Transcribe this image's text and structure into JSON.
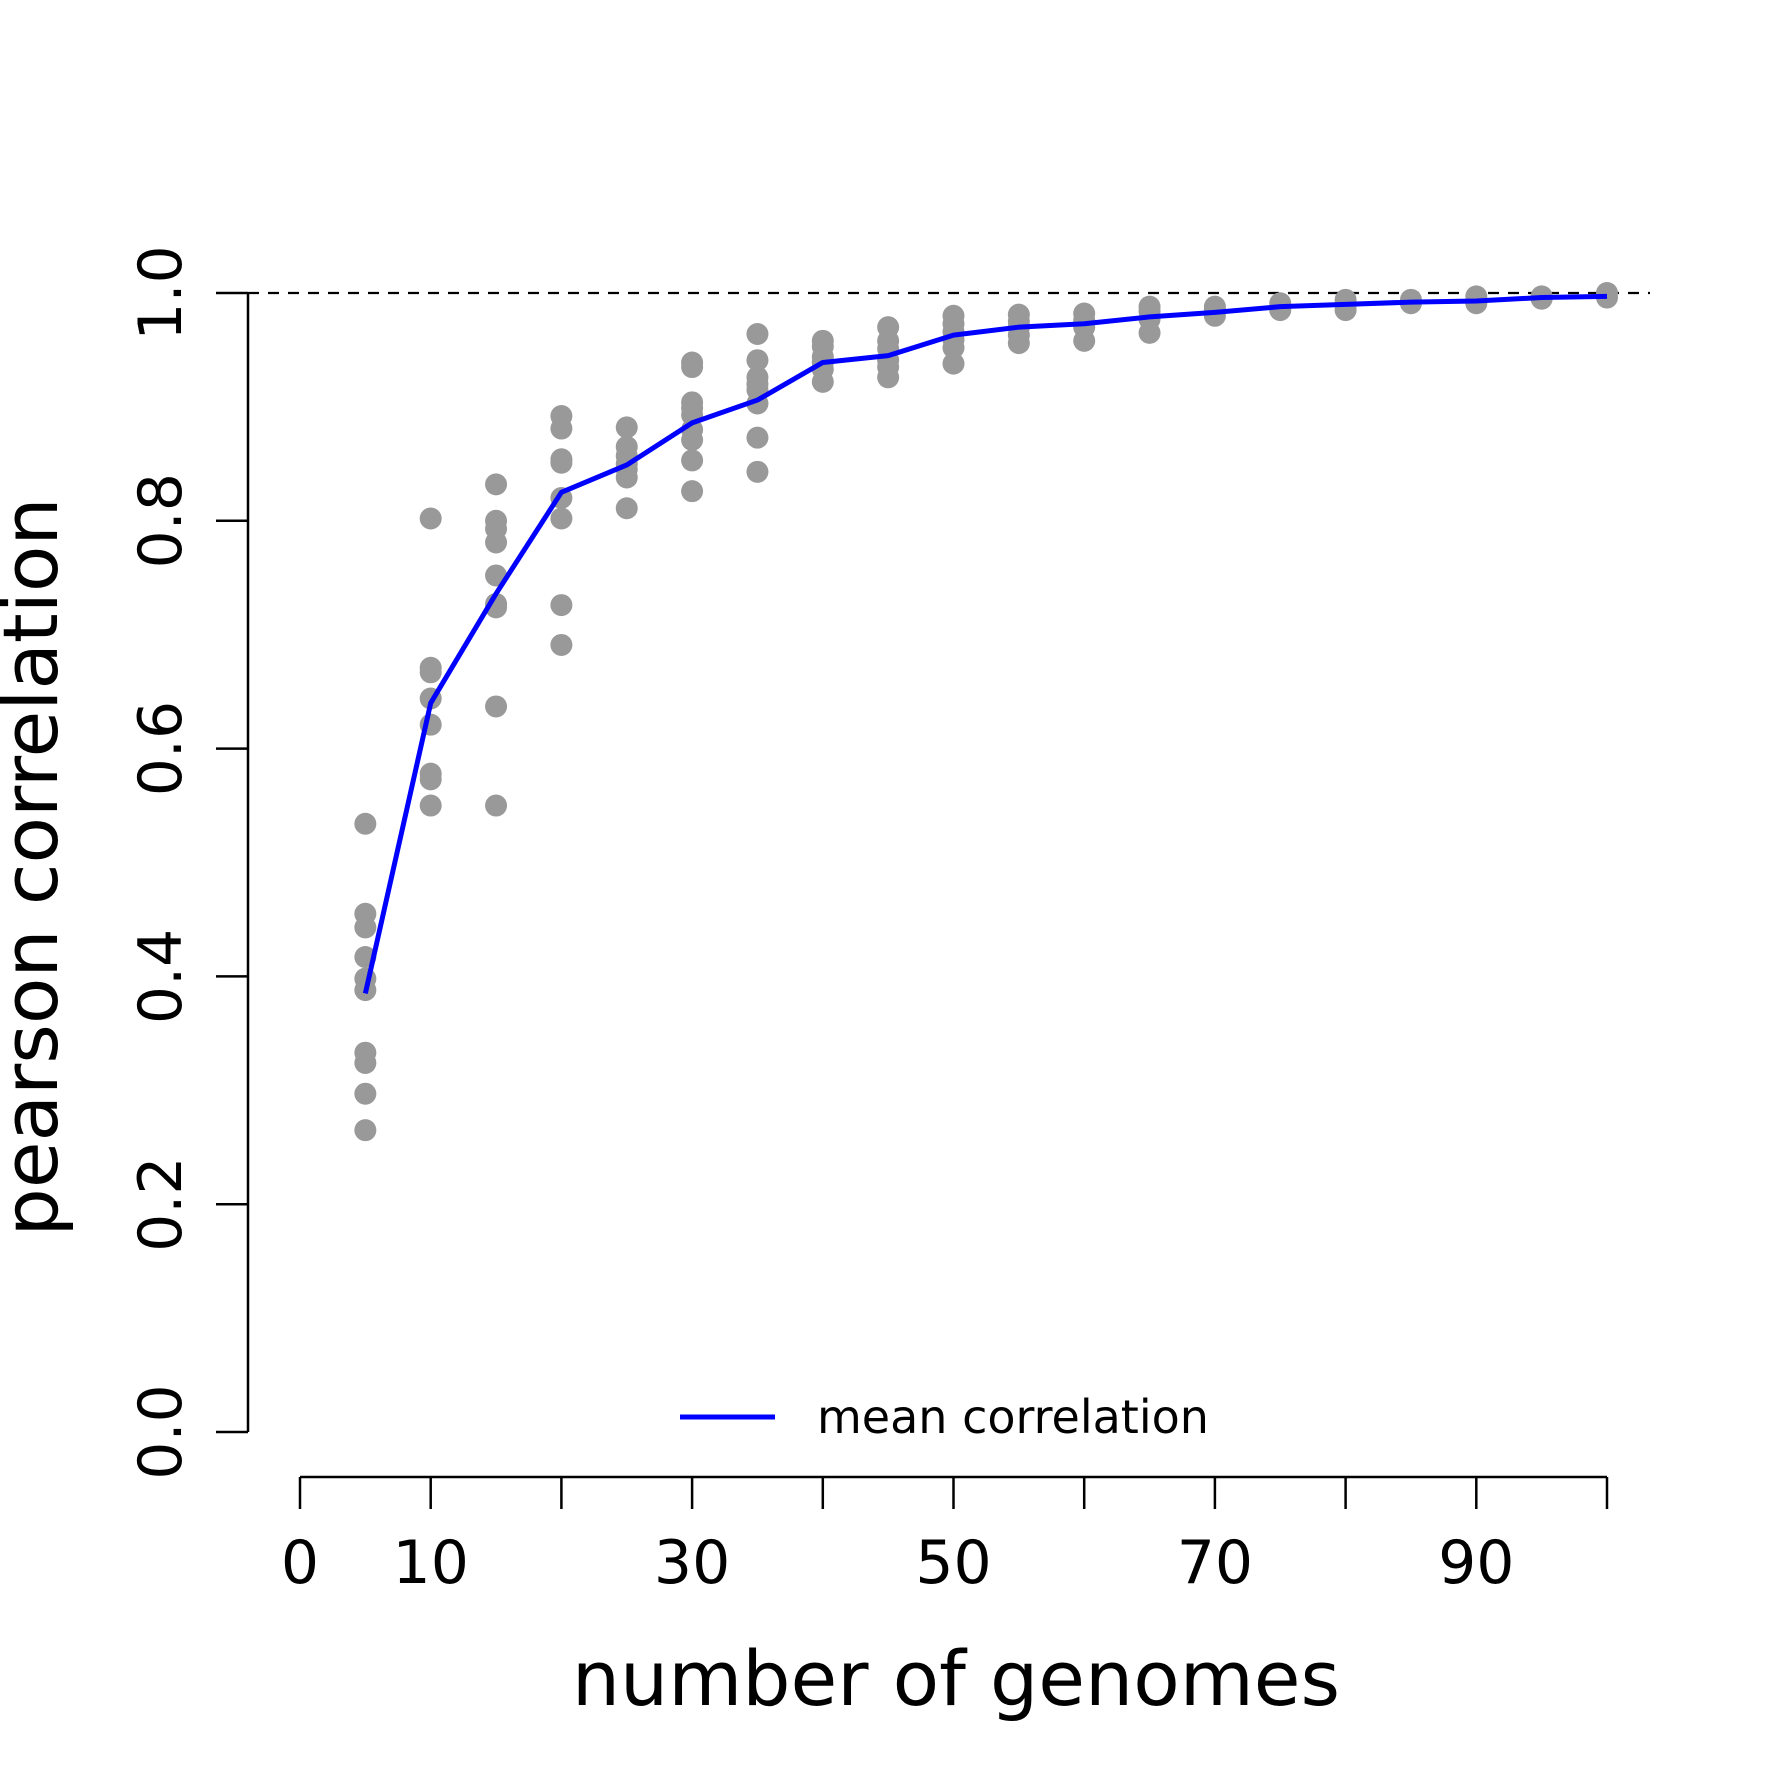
{
  "chart_data": {
    "type": "scatter",
    "xlabel": "number of genomes",
    "ylabel": "pearson correlation",
    "xlim": [
      0,
      100
    ],
    "ylim": [
      0,
      1
    ],
    "x_ticks": [
      0,
      10,
      20,
      30,
      40,
      50,
      60,
      70,
      80,
      90,
      100
    ],
    "x_tick_labels": [
      "0",
      "10",
      "30",
      "50",
      "70",
      "90"
    ],
    "x_labeled_values": [
      0,
      10,
      30,
      50,
      70,
      90
    ],
    "y_ticks": [
      0,
      0.2,
      0.4,
      0.6,
      0.8,
      1.0
    ],
    "y_tick_labels": [
      "0.0",
      "0.2",
      "0.4",
      "0.6",
      "0.8",
      "1.0"
    ],
    "reference_line": {
      "y": 1.0,
      "style": "dashed"
    },
    "legend": {
      "position": "bottom-center",
      "entries": [
        "mean correlation"
      ]
    },
    "colors": {
      "points": "#999999",
      "mean_line": "#0000ff",
      "axis": "#000000"
    },
    "points": [
      {
        "x": 5,
        "y": [
          0.534,
          0.455,
          0.443,
          0.417,
          0.398,
          0.388,
          0.333,
          0.324,
          0.297,
          0.265
        ]
      },
      {
        "x": 10,
        "y": [
          0.802,
          0.671,
          0.667,
          0.644,
          0.621,
          0.578,
          0.573,
          0.55
        ]
      },
      {
        "x": 15,
        "y": [
          0.832,
          0.8,
          0.793,
          0.781,
          0.752,
          0.727,
          0.724,
          0.637,
          0.55
        ]
      },
      {
        "x": 20,
        "y": [
          0.892,
          0.881,
          0.854,
          0.851,
          0.82,
          0.802,
          0.726,
          0.691
        ]
      },
      {
        "x": 25,
        "y": [
          0.882,
          0.865,
          0.857,
          0.85,
          0.845,
          0.838,
          0.811
        ]
      },
      {
        "x": 30,
        "y": [
          0.939,
          0.935,
          0.904,
          0.899,
          0.893,
          0.88,
          0.871,
          0.853,
          0.826
        ]
      },
      {
        "x": 35,
        "y": [
          0.964,
          0.941,
          0.926,
          0.92,
          0.915,
          0.903,
          0.873,
          0.843
        ]
      },
      {
        "x": 40,
        "y": [
          0.958,
          0.953,
          0.944,
          0.939,
          0.933,
          0.922
        ]
      },
      {
        "x": 45,
        "y": [
          0.97,
          0.958,
          0.951,
          0.941,
          0.935,
          0.926
        ]
      },
      {
        "x": 50,
        "y": [
          0.98,
          0.973,
          0.966,
          0.959,
          0.952,
          0.938
        ]
      },
      {
        "x": 55,
        "y": [
          0.981,
          0.975,
          0.97,
          0.963,
          0.956
        ]
      },
      {
        "x": 60,
        "y": [
          0.982,
          0.976,
          0.97,
          0.958
        ]
      },
      {
        "x": 65,
        "y": [
          0.988,
          0.984,
          0.977,
          0.965
        ]
      },
      {
        "x": 70,
        "y": [
          0.988,
          0.985,
          0.98
        ]
      },
      {
        "x": 75,
        "y": [
          0.991,
          0.988,
          0.985
        ]
      },
      {
        "x": 80,
        "y": [
          0.994,
          0.989,
          0.985
        ]
      },
      {
        "x": 85,
        "y": [
          0.994,
          0.991
        ]
      },
      {
        "x": 90,
        "y": [
          0.997,
          0.991
        ]
      },
      {
        "x": 95,
        "y": [
          0.997,
          0.995
        ]
      },
      {
        "x": 100,
        "y": [
          1.0,
          0.996
        ]
      }
    ],
    "series": [
      {
        "name": "mean correlation",
        "x": [
          5,
          10,
          15,
          20,
          25,
          30,
          35,
          40,
          45,
          50,
          55,
          60,
          65,
          70,
          75,
          80,
          85,
          90,
          95,
          100
        ],
        "values": [
          0.385,
          0.64,
          0.736,
          0.825,
          0.849,
          0.886,
          0.906,
          0.939,
          0.945,
          0.963,
          0.97,
          0.973,
          0.979,
          0.983,
          0.988,
          0.99,
          0.992,
          0.993,
          0.996,
          0.997
        ]
      }
    ]
  }
}
